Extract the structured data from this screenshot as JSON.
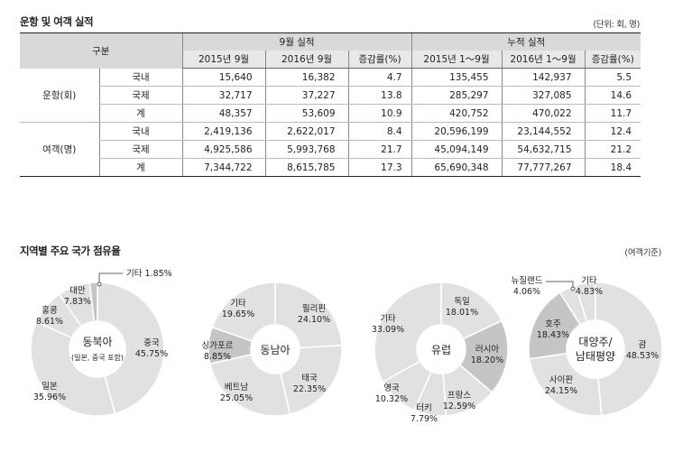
{
  "table_section": {
    "title": "운항 및 여객 실적",
    "unit": "(단위: 회, 명)",
    "header_group": "구분",
    "header_sep": "9월 실적",
    "header_cum": "누적 실적",
    "columns": [
      "2015년 9월",
      "2016년 9월",
      "증감률(%)",
      "2015년 1～9월",
      "2016년 1～9월",
      "증감률(%)"
    ],
    "groups": [
      {
        "name": "운항(회)",
        "rows": [
          {
            "label": "국내",
            "values": [
              "15,640",
              "16,382",
              "4.7",
              "135,455",
              "142,937",
              "5.5"
            ]
          },
          {
            "label": "국제",
            "values": [
              "32,717",
              "37,227",
              "13.8",
              "285,297",
              "327,085",
              "14.6"
            ]
          },
          {
            "label": "계",
            "values": [
              "48,357",
              "53,609",
              "10.9",
              "420,752",
              "470,022",
              "11.7"
            ]
          }
        ]
      },
      {
        "name": "여객(명)",
        "rows": [
          {
            "label": "국내",
            "values": [
              "2,419,136",
              "2,622,017",
              "8.4",
              "20,596,199",
              "23,144,552",
              "12.4"
            ]
          },
          {
            "label": "국제",
            "values": [
              "4,925,586",
              "5,993,768",
              "21.7",
              "45,094,149",
              "54,632,715",
              "21.2"
            ]
          },
          {
            "label": "계",
            "values": [
              "7,344,722",
              "8,615,785",
              "17.3",
              "65,690,348",
              "77,777,267",
              "18.4"
            ]
          }
        ]
      }
    ]
  },
  "chart_section": {
    "title": "지역별 주요 국가 점유율",
    "unit": "(여객기준)"
  },
  "colors": {
    "ring": "#e1e1e1",
    "highlight": "#c5c5c5",
    "divider": "#ffffff",
    "text": "#222222"
  },
  "chart_data": [
    {
      "type": "pie",
      "center_label": [
        "동북아",
        "(일본, 중국 포함)"
      ],
      "slices": [
        {
          "label": "중국",
          "value": 45.75
        },
        {
          "label": "일본",
          "value": 35.96
        },
        {
          "label": "홍콩",
          "value": 8.61
        },
        {
          "label": "대만",
          "value": 7.83
        },
        {
          "label": "기타",
          "value": 1.85
        }
      ]
    },
    {
      "type": "pie",
      "center_label": [
        "동남아"
      ],
      "slices": [
        {
          "label": "필리핀",
          "value": 24.1
        },
        {
          "label": "태국",
          "value": 22.35
        },
        {
          "label": "베트남",
          "value": 25.05
        },
        {
          "label": "싱가포르",
          "value": 8.85
        },
        {
          "label": "기타",
          "value": 19.65
        }
      ]
    },
    {
      "type": "pie",
      "center_label": [
        "유럽"
      ],
      "slices": [
        {
          "label": "독일",
          "value": 18.01
        },
        {
          "label": "러시아",
          "value": 18.2
        },
        {
          "label": "프랑스",
          "value": 12.59
        },
        {
          "label": "터키",
          "value": 7.79
        },
        {
          "label": "영국",
          "value": 10.32
        },
        {
          "label": "기타",
          "value": 33.09
        }
      ]
    },
    {
      "type": "pie",
      "center_label": [
        "대양주/",
        "남태평양"
      ],
      "slices": [
        {
          "label": "괌",
          "value": 48.53
        },
        {
          "label": "사이판",
          "value": 24.15
        },
        {
          "label": "호주",
          "value": 18.43
        },
        {
          "label": "뉴질랜드",
          "value": 4.06
        },
        {
          "label": "기타",
          "value": 4.83
        }
      ]
    }
  ]
}
